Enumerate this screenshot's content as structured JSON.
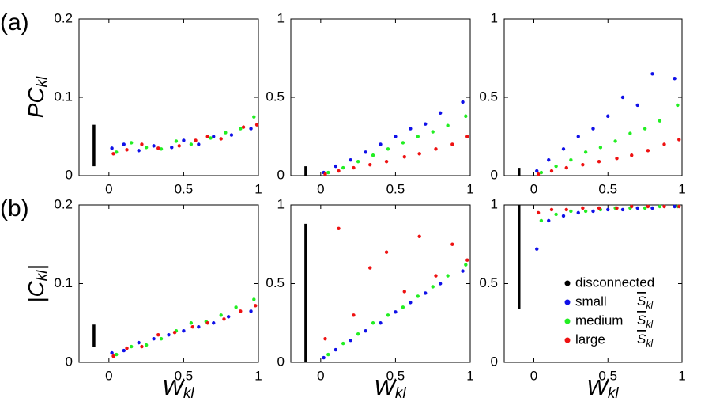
{
  "chart_data": [
    {
      "type": "scatter",
      "panel_label": "(a)",
      "ylabel": {
        "main": "PC",
        "sub": "kl"
      },
      "xlim": [
        -0.2,
        1
      ],
      "ylim": [
        0,
        0.2
      ],
      "xticks": [
        0,
        0.5,
        1
      ],
      "yticks": [
        0,
        0.1,
        0.2
      ],
      "series": [
        {
          "color": "#000000",
          "x": [
            -0.1,
            -0.1
          ],
          "values": [
            0.012,
            0.065
          ]
        },
        {
          "color": "#1010e8",
          "x": [
            0.02,
            0.1,
            0.2,
            0.3,
            0.42,
            0.5,
            0.6,
            0.7,
            0.82,
            0.95
          ],
          "values": [
            0.035,
            0.04,
            0.032,
            0.038,
            0.036,
            0.045,
            0.04,
            0.05,
            0.052,
            0.06
          ]
        },
        {
          "color": "#22ee22",
          "x": [
            0.05,
            0.15,
            0.25,
            0.35,
            0.45,
            0.55,
            0.68,
            0.78,
            0.88,
            0.97
          ],
          "values": [
            0.03,
            0.042,
            0.036,
            0.034,
            0.044,
            0.04,
            0.048,
            0.055,
            0.06,
            0.075
          ]
        },
        {
          "color": "#ee1111",
          "x": [
            0.03,
            0.12,
            0.22,
            0.33,
            0.47,
            0.58,
            0.66,
            0.75,
            0.9,
            0.99
          ],
          "values": [
            0.028,
            0.033,
            0.04,
            0.035,
            0.038,
            0.045,
            0.05,
            0.047,
            0.062,
            0.065
          ]
        }
      ]
    },
    {
      "type": "scatter",
      "xlim": [
        -0.2,
        1
      ],
      "ylim": [
        0,
        1
      ],
      "xticks": [
        0,
        0.5,
        1
      ],
      "yticks": [
        0,
        0.5,
        1
      ],
      "series": [
        {
          "color": "#000000",
          "x": [
            -0.1,
            -0.1
          ],
          "values": [
            0,
            0.06
          ]
        },
        {
          "color": "#1010e8",
          "x": [
            0.02,
            0.1,
            0.2,
            0.3,
            0.4,
            0.5,
            0.6,
            0.7,
            0.8,
            0.95
          ],
          "values": [
            0.02,
            0.06,
            0.1,
            0.15,
            0.2,
            0.25,
            0.3,
            0.33,
            0.4,
            0.47
          ]
        },
        {
          "color": "#22ee22",
          "x": [
            0.05,
            0.15,
            0.25,
            0.35,
            0.45,
            0.55,
            0.65,
            0.75,
            0.85,
            0.97
          ],
          "values": [
            0.02,
            0.05,
            0.09,
            0.13,
            0.17,
            0.21,
            0.25,
            0.28,
            0.32,
            0.38
          ]
        },
        {
          "color": "#ee1111",
          "x": [
            0.03,
            0.12,
            0.22,
            0.33,
            0.44,
            0.56,
            0.66,
            0.77,
            0.88,
            0.98
          ],
          "values": [
            0.01,
            0.03,
            0.05,
            0.07,
            0.09,
            0.12,
            0.14,
            0.17,
            0.2,
            0.25
          ]
        }
      ]
    },
    {
      "type": "scatter",
      "xlim": [
        -0.2,
        1
      ],
      "ylim": [
        0,
        1
      ],
      "xticks": [
        0,
        0.5,
        1
      ],
      "yticks": [
        0,
        0.5,
        1
      ],
      "series": [
        {
          "color": "#000000",
          "x": [
            -0.1,
            -0.1
          ],
          "values": [
            0,
            0.05
          ]
        },
        {
          "color": "#1010e8",
          "x": [
            0.02,
            0.1,
            0.2,
            0.3,
            0.4,
            0.5,
            0.6,
            0.7,
            0.8,
            0.95
          ],
          "values": [
            0.03,
            0.1,
            0.17,
            0.25,
            0.3,
            0.38,
            0.5,
            0.45,
            0.65,
            0.62
          ]
        },
        {
          "color": "#22ee22",
          "x": [
            0.05,
            0.15,
            0.25,
            0.35,
            0.45,
            0.55,
            0.65,
            0.75,
            0.85,
            0.97
          ],
          "values": [
            0.02,
            0.06,
            0.1,
            0.15,
            0.18,
            0.22,
            0.27,
            0.3,
            0.35,
            0.45
          ]
        },
        {
          "color": "#ee1111",
          "x": [
            0.03,
            0.12,
            0.22,
            0.33,
            0.44,
            0.56,
            0.66,
            0.77,
            0.88,
            0.98
          ],
          "values": [
            0.01,
            0.03,
            0.05,
            0.07,
            0.09,
            0.11,
            0.13,
            0.16,
            0.2,
            0.23
          ]
        }
      ]
    },
    {
      "type": "scatter",
      "panel_label": "(b)",
      "ylabel": {
        "main": "|C",
        "sub": "kl",
        "end": "|"
      },
      "xlabel": {
        "main": "W",
        "sub": "kl"
      },
      "xlim": [
        -0.2,
        1
      ],
      "ylim": [
        0,
        0.2
      ],
      "xticks": [
        0,
        0.5,
        1
      ],
      "yticks": [
        0,
        0.1,
        0.2
      ],
      "series": [
        {
          "color": "#000000",
          "x": [
            -0.1,
            -0.1
          ],
          "values": [
            0.02,
            0.048
          ]
        },
        {
          "color": "#1010e8",
          "x": [
            0.02,
            0.1,
            0.2,
            0.3,
            0.4,
            0.5,
            0.6,
            0.7,
            0.8,
            0.95
          ],
          "values": [
            0.012,
            0.015,
            0.025,
            0.03,
            0.035,
            0.04,
            0.045,
            0.05,
            0.058,
            0.065
          ]
        },
        {
          "color": "#22ee22",
          "x": [
            0.05,
            0.15,
            0.25,
            0.35,
            0.45,
            0.55,
            0.65,
            0.75,
            0.85,
            0.97
          ],
          "values": [
            0.01,
            0.02,
            0.022,
            0.03,
            0.04,
            0.05,
            0.052,
            0.06,
            0.07,
            0.08
          ]
        },
        {
          "color": "#ee1111",
          "x": [
            0.03,
            0.12,
            0.22,
            0.33,
            0.44,
            0.56,
            0.66,
            0.77,
            0.88,
            0.98
          ],
          "values": [
            0.008,
            0.018,
            0.02,
            0.035,
            0.038,
            0.045,
            0.05,
            0.055,
            0.065,
            0.072
          ]
        }
      ]
    },
    {
      "type": "scatter",
      "xlabel": {
        "main": "W",
        "sub": "kl"
      },
      "xlim": [
        -0.2,
        1
      ],
      "ylim": [
        0,
        1
      ],
      "xticks": [
        0,
        0.5,
        1
      ],
      "yticks": [
        0,
        0.5,
        1
      ],
      "series": [
        {
          "color": "#000000",
          "x": [
            -0.1,
            -0.1
          ],
          "values": [
            0,
            0.88
          ]
        },
        {
          "color": "#1010e8",
          "x": [
            0.02,
            0.1,
            0.2,
            0.3,
            0.4,
            0.5,
            0.6,
            0.7,
            0.8,
            0.95
          ],
          "values": [
            0.03,
            0.08,
            0.14,
            0.2,
            0.25,
            0.32,
            0.38,
            0.44,
            0.5,
            0.58
          ]
        },
        {
          "color": "#22ee22",
          "x": [
            0.05,
            0.15,
            0.25,
            0.35,
            0.45,
            0.55,
            0.65,
            0.75,
            0.85,
            0.97
          ],
          "values": [
            0.05,
            0.12,
            0.18,
            0.25,
            0.3,
            0.35,
            0.42,
            0.48,
            0.55,
            0.62
          ]
        },
        {
          "color": "#ee1111",
          "x": [
            0.03,
            0.12,
            0.22,
            0.33,
            0.44,
            0.56,
            0.66,
            0.77,
            0.88,
            0.98
          ],
          "values": [
            0.15,
            0.85,
            0.3,
            0.6,
            0.7,
            0.45,
            0.8,
            0.55,
            0.75,
            0.65
          ]
        }
      ]
    },
    {
      "type": "scatter",
      "xlabel": {
        "main": "W",
        "sub": "kl"
      },
      "xlim": [
        -0.2,
        1
      ],
      "ylim": [
        0,
        1
      ],
      "xticks": [
        0,
        0.5,
        1
      ],
      "yticks": [
        0,
        0.5,
        1
      ],
      "legend": "lower right",
      "series": [
        {
          "name": "disconnected",
          "color": "#000000",
          "x": [
            -0.1,
            -0.1
          ],
          "values": [
            0.34,
            1
          ]
        },
        {
          "name": "small",
          "symbol": {
            "main": "S",
            "sub": "kl"
          },
          "color": "#1010e8",
          "x": [
            0.02,
            0.1,
            0.2,
            0.3,
            0.4,
            0.5,
            0.6,
            0.7,
            0.8,
            0.95
          ],
          "values": [
            0.72,
            0.9,
            0.93,
            0.95,
            0.96,
            0.97,
            0.97,
            0.98,
            0.98,
            0.99
          ]
        },
        {
          "name": "medium",
          "symbol": {
            "main": "S",
            "sub": "kl"
          },
          "color": "#22ee22",
          "x": [
            0.05,
            0.15,
            0.25,
            0.35,
            0.45,
            0.55,
            0.65,
            0.75,
            0.85,
            0.97
          ],
          "values": [
            0.9,
            0.94,
            0.96,
            0.96,
            0.97,
            0.98,
            0.98,
            0.98,
            0.99,
            0.99
          ]
        },
        {
          "name": "large",
          "symbol": {
            "main": "S",
            "sub": "kl"
          },
          "color": "#ee1111",
          "x": [
            0.03,
            0.12,
            0.22,
            0.33,
            0.44,
            0.56,
            0.66,
            0.77,
            0.88,
            0.98
          ],
          "values": [
            0.95,
            0.97,
            0.97,
            0.98,
            0.98,
            0.98,
            0.99,
            0.99,
            0.99,
            0.99
          ]
        }
      ]
    }
  ]
}
